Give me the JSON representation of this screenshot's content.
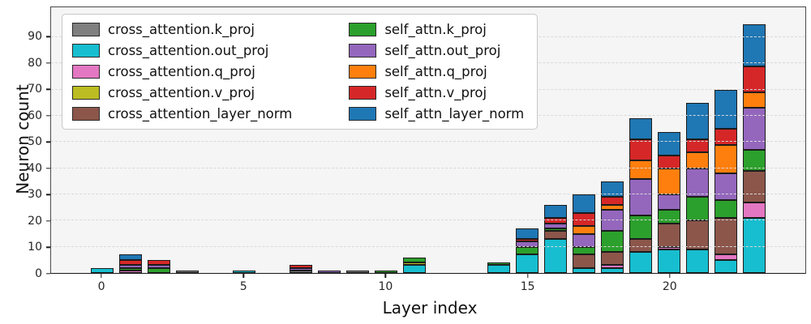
{
  "chart_data": {
    "type": "bar",
    "stacked": true,
    "title": "",
    "xlabel": "Layer index",
    "ylabel": "Neuron count",
    "x": [
      0,
      1,
      2,
      3,
      4,
      5,
      6,
      7,
      8,
      9,
      10,
      11,
      12,
      13,
      14,
      15,
      16,
      17,
      18,
      19,
      20,
      21,
      22,
      23
    ],
    "xticks": [
      0,
      5,
      10,
      15,
      20
    ],
    "yticks": [
      0,
      10,
      20,
      30,
      40,
      50,
      60,
      70,
      80,
      90
    ],
    "xlim": [
      -1.8,
      24.8
    ],
    "ylim": [
      0,
      101.5
    ],
    "bar_width": 0.8,
    "grid": "horizontal-dashed",
    "legend_position": "upper-left",
    "series": [
      {
        "name": "cross_attention.k_proj",
        "color": "#7f7f7f",
        "values": [
          0,
          0,
          0,
          1,
          0,
          0,
          0,
          1,
          0,
          1,
          0,
          0,
          0,
          0,
          0,
          0,
          0,
          0,
          0,
          0,
          0,
          0,
          0,
          0
        ]
      },
      {
        "name": "cross_attention.out_proj",
        "color": "#17becf",
        "values": [
          2,
          0,
          0,
          0,
          0,
          1,
          0,
          0,
          0,
          0,
          0,
          3,
          0,
          0,
          3,
          7,
          13,
          2,
          2,
          8,
          9,
          9,
          5,
          21
        ]
      },
      {
        "name": "cross_attention.q_proj",
        "color": "#e377c2",
        "values": [
          0,
          1,
          0,
          0,
          0,
          0,
          0,
          0,
          0,
          0,
          0,
          0,
          0,
          0,
          0,
          0,
          0,
          0,
          1,
          0,
          1,
          0,
          2,
          6
        ]
      },
      {
        "name": "cross_attention.v_proj",
        "color": "#bcbd22",
        "values": [
          0,
          0,
          0,
          0,
          0,
          0,
          0,
          0,
          0,
          0,
          0,
          1,
          0,
          0,
          0,
          0,
          0,
          0,
          0,
          0,
          0,
          0,
          0,
          0
        ]
      },
      {
        "name": "cross_attention_layer_norm",
        "color": "#8c564b",
        "values": [
          0,
          0,
          0,
          0,
          0,
          0,
          0,
          0,
          0,
          0,
          0,
          0,
          0,
          0,
          0,
          0,
          3,
          5,
          5,
          5,
          9,
          11,
          14,
          12
        ]
      },
      {
        "name": "self_attn.k_proj",
        "color": "#2ca02c",
        "values": [
          0,
          1,
          2,
          0,
          0,
          0,
          0,
          0,
          0,
          0,
          1,
          2,
          0,
          0,
          1,
          3,
          1,
          3,
          8,
          9,
          5,
          9,
          7,
          8
        ]
      },
      {
        "name": "self_attn.out_proj",
        "color": "#9467bd",
        "values": [
          0,
          1,
          1,
          0,
          0,
          0,
          0,
          1,
          1,
          0,
          0,
          0,
          0,
          0,
          0,
          2,
          2,
          5,
          8,
          14,
          6,
          11,
          10,
          16
        ]
      },
      {
        "name": "self_attn.q_proj",
        "color": "#ff7f0e",
        "values": [
          0,
          0,
          0,
          0,
          0,
          0,
          0,
          0,
          0,
          0,
          0,
          0,
          0,
          0,
          0,
          0,
          0,
          3,
          2,
          7,
          10,
          6,
          11,
          6
        ]
      },
      {
        "name": "self_attn.v_proj",
        "color": "#d62728",
        "values": [
          0,
          2,
          2,
          0,
          0,
          0,
          0,
          1,
          0,
          0,
          0,
          0,
          0,
          0,
          0,
          1,
          2,
          5,
          3,
          8,
          5,
          5,
          6,
          10
        ]
      },
      {
        "name": "self_attn_layer_norm",
        "color": "#1f77b4",
        "values": [
          0,
          2,
          0,
          0,
          0,
          0,
          0,
          0,
          0,
          0,
          0,
          0,
          0,
          0,
          0,
          4,
          5,
          7,
          6,
          8,
          9,
          14,
          15,
          16
        ]
      }
    ]
  },
  "colors": {
    "plot_background": "#f5f5f5",
    "figure_background": "#ffffff",
    "gridline": "#d9d9d9",
    "bar_edge": "#1c1c1c",
    "spine": "#1a1a1a"
  }
}
